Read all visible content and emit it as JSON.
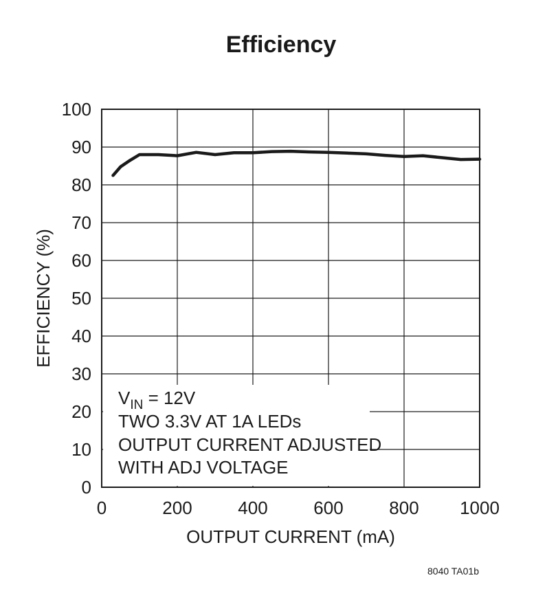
{
  "chart_data": {
    "type": "line",
    "title": "Efficiency",
    "xlabel": "OUTPUT CURRENT (mA)",
    "ylabel": "EFFICIENCY (%)",
    "xlim": [
      0,
      1000
    ],
    "ylim": [
      0,
      100
    ],
    "x_ticks": [
      "0",
      "200",
      "400",
      "600",
      "800",
      "1000"
    ],
    "y_ticks": [
      "0",
      "10",
      "20",
      "30",
      "40",
      "50",
      "60",
      "70",
      "80",
      "90",
      "100"
    ],
    "grid": true,
    "series": [
      {
        "x": [
          30,
          50,
          75,
          100,
          150,
          200,
          250,
          300,
          350,
          400,
          450,
          500,
          550,
          600,
          650,
          700,
          750,
          800,
          850,
          900,
          950,
          1000
        ],
        "y": [
          82.5,
          84.8,
          86.5,
          88.0,
          88.0,
          87.7,
          88.6,
          88.0,
          88.5,
          88.5,
          88.8,
          88.9,
          88.7,
          88.6,
          88.4,
          88.2,
          87.8,
          87.5,
          87.7,
          87.2,
          86.7,
          86.8
        ],
        "color": "#1a1a1a"
      }
    ],
    "annotation": {
      "line1_main": "V",
      "line1_sub": "IN",
      "line1_rest": " = 12V",
      "line2": "TWO 3.3V AT 1A LEDs",
      "line3": "OUTPUT CURRENT ADJUSTED",
      "line4": "WITH ADJ VOLTAGE"
    },
    "figure_id": "8040 TA01b"
  }
}
